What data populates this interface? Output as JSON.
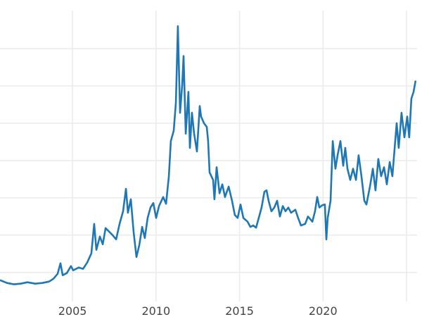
{
  "chart_data": {
    "type": "line",
    "title": "",
    "xlabel": "",
    "ylabel": "",
    "xlim": [
      2000.66,
      2025.63
    ],
    "ylim": [
      1.1,
      40.1
    ],
    "x_ticks": [
      2005,
      2010,
      2015,
      2020,
      2025
    ],
    "x_tick_labels": [
      "2005",
      "2010",
      "2015",
      "2020",
      ""
    ],
    "y_gridlines": [
      5,
      10,
      15,
      20,
      25,
      30,
      35
    ],
    "y_tick_labels_shown": false,
    "grid": true,
    "color": "#1f77b4",
    "series": [
      {
        "x": [
          2000.66,
          2001.08,
          2001.5,
          2001.9,
          2002.3,
          2002.77,
          2003.19,
          2003.6,
          2003.86,
          2004.11,
          2004.28,
          2004.41,
          2004.66,
          2004.91,
          2005.04,
          2005.38,
          2005.63,
          2005.88,
          2006.13,
          2006.3,
          2006.43,
          2006.64,
          2006.81,
          2006.98,
          2007.23,
          2007.4,
          2007.61,
          2007.82,
          2008.03,
          2008.2,
          2008.32,
          2008.49,
          2008.66,
          2008.83,
          2009.0,
          2009.17,
          2009.33,
          2009.5,
          2009.67,
          2009.84,
          2010.01,
          2010.18,
          2010.43,
          2010.6,
          2010.77,
          2010.89,
          2011.06,
          2011.19,
          2011.31,
          2011.44,
          2011.57,
          2011.65,
          2011.78,
          2011.94,
          2012.03,
          2012.15,
          2012.28,
          2012.45,
          2012.62,
          2012.7,
          2012.87,
          2013.04,
          2013.12,
          2013.21,
          2013.42,
          2013.5,
          2013.63,
          2013.8,
          2013.97,
          2014.13,
          2014.35,
          2014.55,
          2014.72,
          2014.89,
          2015.06,
          2015.23,
          2015.48,
          2015.65,
          2015.82,
          2015.99,
          2016.15,
          2016.32,
          2016.49,
          2016.62,
          2016.74,
          2016.91,
          2017.08,
          2017.25,
          2017.42,
          2017.59,
          2017.75,
          2017.92,
          2018.09,
          2018.34,
          2018.51,
          2018.68,
          2018.93,
          2019.1,
          2019.36,
          2019.52,
          2019.65,
          2019.78,
          2019.95,
          2020.11,
          2020.2,
          2020.28,
          2020.45,
          2020.58,
          2020.74,
          2020.87,
          2021.04,
          2021.21,
          2021.33,
          2021.46,
          2021.63,
          2021.8,
          2021.97,
          2022.13,
          2022.3,
          2022.47,
          2022.6,
          2022.81,
          2022.98,
          2023.14,
          2023.31,
          2023.48,
          2023.65,
          2023.82,
          2023.99,
          2024.15,
          2024.32,
          2024.41,
          2024.53,
          2024.7,
          2024.87,
          2025.04,
          2025.16,
          2025.29,
          2025.42,
          2025.54
        ],
        "y": [
          3.96,
          3.58,
          3.4,
          3.49,
          3.68,
          3.49,
          3.58,
          3.77,
          4.15,
          4.81,
          6.23,
          4.62,
          4.91,
          5.85,
          5.28,
          5.66,
          5.47,
          6.32,
          7.55,
          11.5,
          8.02,
          9.81,
          8.77,
          10.94,
          10.38,
          10.0,
          9.43,
          11.5,
          13.2,
          16.2,
          13.0,
          14.8,
          10.4,
          7.07,
          8.68,
          11.1,
          9.62,
          12.3,
          13.7,
          14.3,
          12.3,
          13.9,
          15.1,
          14.2,
          17.9,
          22.6,
          24.0,
          27.8,
          38.0,
          26.4,
          30.2,
          34.0,
          23.6,
          29.2,
          21.7,
          26.4,
          23.6,
          21.2,
          27.3,
          25.9,
          25.0,
          24.5,
          22.6,
          18.4,
          17.4,
          14.8,
          19.1,
          15.6,
          16.8,
          15.1,
          16.5,
          14.6,
          12.7,
          12.3,
          14.1,
          12.3,
          11.8,
          11.1,
          11.3,
          11.0,
          12.3,
          13.7,
          15.8,
          16.0,
          14.6,
          13.2,
          13.7,
          14.6,
          12.5,
          13.9,
          13.2,
          13.7,
          13.0,
          13.4,
          12.3,
          11.3,
          11.5,
          12.5,
          11.8,
          13.2,
          15.1,
          13.7,
          14.0,
          14.1,
          9.43,
          12.3,
          14.6,
          22.6,
          18.9,
          20.7,
          22.6,
          19.3,
          21.7,
          18.9,
          17.4,
          18.9,
          17.4,
          20.7,
          17.9,
          14.6,
          14.1,
          16.5,
          18.9,
          16.0,
          20.2,
          17.9,
          19.1,
          16.8,
          19.8,
          17.9,
          22.6,
          25.0,
          21.7,
          26.4,
          23.1,
          25.9,
          23.1,
          28.3,
          29.2,
          30.7
        ]
      }
    ]
  }
}
